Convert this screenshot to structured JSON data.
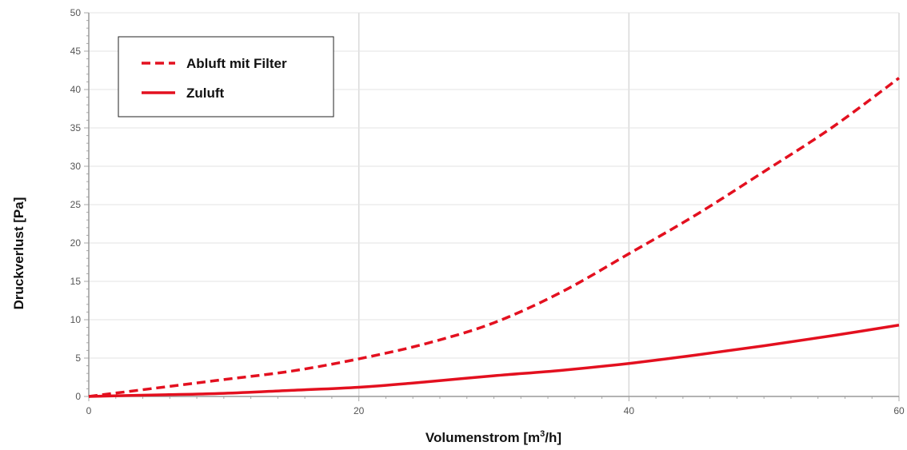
{
  "chart_data": {
    "type": "line",
    "xlabel_main": "Volumenstrom [m",
    "xlabel_sup": "3",
    "xlabel_tail": "/h]",
    "ylabel": "Druckverlust [Pa]",
    "xlim": [
      0,
      60
    ],
    "ylim": [
      0,
      50
    ],
    "x_ticks": [
      "0",
      "20",
      "40",
      "60"
    ],
    "y_ticks": [
      "0",
      "5",
      "10",
      "15",
      "20",
      "25",
      "30",
      "35",
      "40",
      "45",
      "50"
    ],
    "grid": true,
    "legend_position": "top-left",
    "series": [
      {
        "name": "Abluft mit Filter",
        "style": "dashed",
        "color": "#e3101f",
        "x": [
          0,
          5,
          10,
          15,
          20,
          25,
          30,
          35,
          40,
          45,
          50,
          55,
          60
        ],
        "y": [
          0,
          1.1,
          2.2,
          3.3,
          4.9,
          6.9,
          9.6,
          13.6,
          18.6,
          23.7,
          29.3,
          35.0,
          41.5
        ]
      },
      {
        "name": "Zuluft",
        "style": "solid",
        "color": "#e3101f",
        "x": [
          0,
          5,
          10,
          15,
          20,
          25,
          30,
          35,
          40,
          45,
          50,
          55,
          60
        ],
        "y": [
          0,
          0.2,
          0.4,
          0.8,
          1.2,
          1.9,
          2.7,
          3.4,
          4.3,
          5.4,
          6.6,
          7.9,
          9.3
        ]
      }
    ]
  }
}
